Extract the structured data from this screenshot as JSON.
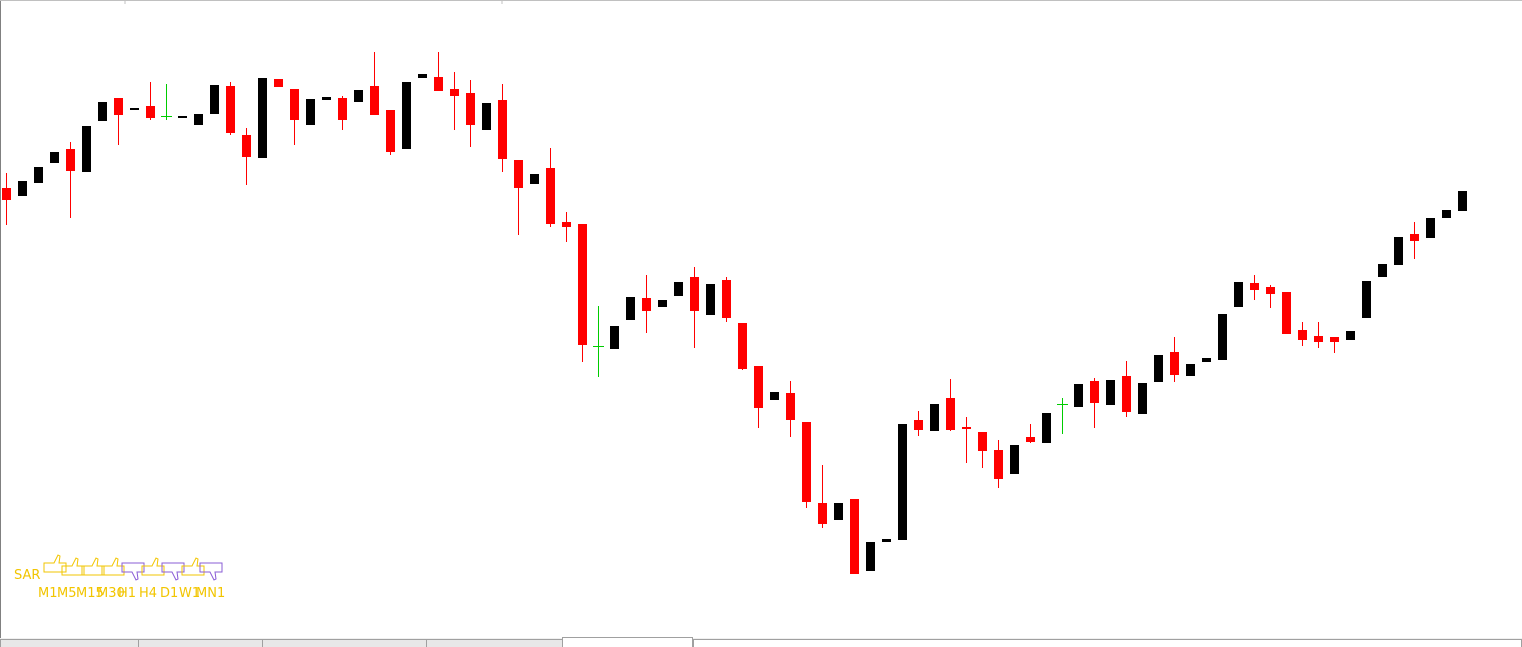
{
  "chart_data": {
    "type": "candlestick",
    "ylim": [
      0,
      647
    ],
    "up_color": "#000000",
    "down_color": "#ff0000",
    "doji_color": "#00cc00",
    "open": [
      459,
      451,
      464,
      484,
      498,
      475,
      526,
      549,
      538,
      541,
      531,
      529,
      522,
      533,
      561,
      512,
      489,
      568,
      558,
      522,
      547,
      549,
      545,
      561,
      537,
      498,
      569,
      570,
      558,
      554,
      517,
      547,
      487,
      463,
      479,
      425,
      423,
      301,
      298,
      327,
      349,
      340,
      351,
      370,
      332,
      367,
      324,
      281,
      247,
      254,
      225,
      144,
      127,
      148,
      76,
      105,
      107,
      227,
      216,
      249,
      220,
      215,
      197,
      173,
      210,
      204,
      243,
      240,
      266,
      242,
      271,
      233,
      265,
      295,
      271,
      285,
      287,
      340,
      364,
      360,
      355,
      317,
      311,
      310,
      307,
      329,
      370,
      382,
      413,
      409,
      429,
      436
    ],
    "high": [
      474,
      466,
      480,
      495,
      505,
      521,
      545,
      549,
      539,
      565,
      563,
      531,
      533,
      562,
      565,
      519,
      569,
      568,
      558,
      548,
      550,
      551,
      557,
      595,
      537,
      565,
      573,
      595,
      575,
      567,
      544,
      563,
      487,
      473,
      499,
      435,
      423,
      341,
      321,
      350,
      372,
      347,
      365,
      380,
      363,
      370,
      324,
      281,
      255,
      266,
      225,
      182,
      144,
      148,
      105,
      108,
      223,
      236,
      243,
      268,
      230,
      215,
      207,
      202,
      223,
      234,
      249,
      263,
      269,
      267,
      286,
      264,
      292,
      310,
      283,
      289,
      333,
      365,
      372,
      362,
      355,
      325,
      325,
      310,
      316,
      366,
      383,
      410,
      425,
      429,
      437,
      456
    ],
    "low": [
      422,
      451,
      464,
      484,
      429,
      475,
      526,
      502,
      538,
      527,
      527,
      529,
      522,
      533,
      512,
      462,
      489,
      560,
      502,
      522,
      547,
      517,
      545,
      532,
      492,
      498,
      569,
      556,
      517,
      500,
      517,
      475,
      412,
      463,
      420,
      405,
      285,
      270,
      298,
      327,
      314,
      340,
      351,
      299,
      332,
      325,
      277,
      219,
      247,
      210,
      139,
      119,
      127,
      73,
      76,
      105,
      107,
      211,
      216,
      216,
      184,
      179,
      159,
      173,
      204,
      204,
      213,
      240,
      219,
      242,
      230,
      233,
      265,
      265,
      271,
      285,
      287,
      340,
      347,
      339,
      313,
      301,
      299,
      294,
      307,
      329,
      370,
      382,
      388,
      409,
      429,
      436
    ],
    "close": [
      447,
      466,
      480,
      495,
      476,
      521,
      545,
      532,
      539,
      529,
      531,
      531,
      533,
      562,
      514,
      490,
      569,
      560,
      527,
      548,
      550,
      527,
      557,
      532,
      495,
      565,
      573,
      556,
      551,
      522,
      544,
      488,
      459,
      473,
      423,
      420,
      302,
      301,
      321,
      350,
      336,
      347,
      365,
      336,
      363,
      329,
      278,
      239,
      255,
      227,
      145,
      123,
      144,
      73,
      105,
      108,
      223,
      217,
      243,
      217,
      218,
      196,
      168,
      202,
      205,
      234,
      243,
      263,
      244,
      267,
      235,
      264,
      292,
      272,
      283,
      289,
      333,
      365,
      357,
      353,
      313,
      307,
      305,
      305,
      316,
      366,
      383,
      410,
      406,
      429,
      437,
      456
    ]
  },
  "indicator": {
    "label": "SAR",
    "color": "#f2c500",
    "timeframes": [
      "M1",
      "M5",
      "M15",
      "M30",
      "H1",
      "H4",
      "D1",
      "W1",
      "MN1"
    ]
  }
}
